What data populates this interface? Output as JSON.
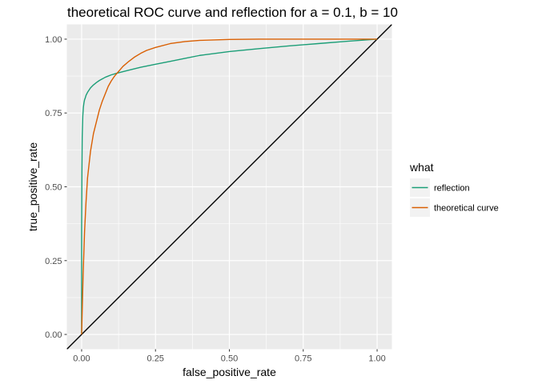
{
  "chart_data": {
    "type": "line",
    "title": "theoretical ROC curve and reflection for a = 0.1, b = 10",
    "xlabel": "false_positive_rate",
    "ylabel": "true_positive_rate",
    "xlim": [
      -0.05,
      1.05
    ],
    "ylim": [
      -0.05,
      1.05
    ],
    "xticks": [
      0.0,
      0.25,
      0.5,
      0.75,
      1.0
    ],
    "xtick_labels": [
      "0.00",
      "0.25",
      "0.50",
      "0.75",
      "1.00"
    ],
    "yticks": [
      0.0,
      0.25,
      0.5,
      0.75,
      1.0
    ],
    "ytick_labels": [
      "0.00",
      "0.25",
      "0.50",
      "0.75",
      "1.00"
    ],
    "grid": true,
    "legend_title": "what",
    "legend_position": "right",
    "reference_line": {
      "slope": 1,
      "intercept": 0,
      "color": "#000000"
    },
    "series": [
      {
        "name": "reflection",
        "color": "#1b9e77",
        "x": [
          0.0,
          0.0,
          0.001,
          0.002,
          0.004,
          0.006,
          0.008,
          0.01,
          0.012,
          0.015,
          0.02,
          0.03,
          0.04,
          0.05,
          0.06,
          0.08,
          0.1,
          0.12,
          0.14,
          0.16,
          0.2,
          0.25,
          0.3,
          0.35,
          0.4,
          0.5,
          0.6,
          0.7,
          0.8,
          0.9,
          1.0
        ],
        "y": [
          0.0,
          0.35,
          0.55,
          0.67,
          0.74,
          0.77,
          0.785,
          0.795,
          0.8,
          0.81,
          0.82,
          0.835,
          0.845,
          0.853,
          0.86,
          0.871,
          0.879,
          0.885,
          0.89,
          0.895,
          0.905,
          0.915,
          0.925,
          0.935,
          0.945,
          0.958,
          0.968,
          0.977,
          0.985,
          0.993,
          1.0
        ]
      },
      {
        "name": "theoretical curve",
        "color": "#d95f02",
        "x": [
          0.0,
          0.005,
          0.01,
          0.015,
          0.02,
          0.03,
          0.04,
          0.05,
          0.06,
          0.07,
          0.08,
          0.09,
          0.1,
          0.11,
          0.12,
          0.14,
          0.16,
          0.18,
          0.2,
          0.22,
          0.25,
          0.3,
          0.35,
          0.4,
          0.5,
          0.6,
          0.8,
          1.0
        ],
        "y": [
          0.0,
          0.2,
          0.35,
          0.45,
          0.53,
          0.62,
          0.68,
          0.72,
          0.76,
          0.79,
          0.815,
          0.84,
          0.858,
          0.873,
          0.885,
          0.908,
          0.925,
          0.94,
          0.952,
          0.962,
          0.972,
          0.985,
          0.992,
          0.996,
          0.999,
          1.0,
          1.0,
          1.0
        ]
      }
    ]
  }
}
